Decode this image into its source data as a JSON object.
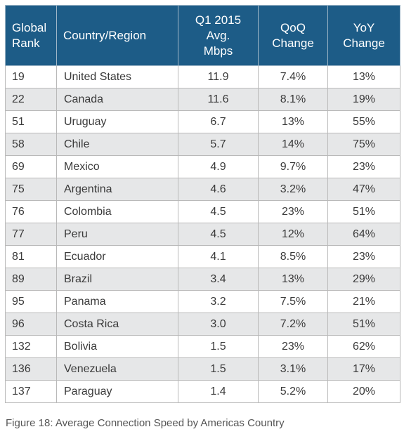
{
  "chart_data": {
    "type": "table",
    "columns": [
      "Global Rank",
      "Country/Region",
      "Q1 2015 Avg. Mbps",
      "QoQ Change",
      "YoY Change"
    ],
    "header_lines": [
      [
        "Global",
        "Rank"
      ],
      [
        "Country/Region"
      ],
      [
        "Q1 2015",
        "Avg.",
        "Mbps"
      ],
      [
        "QoQ",
        "Change"
      ],
      [
        "YoY",
        "Change"
      ]
    ],
    "rows": [
      {
        "rank": "19",
        "country": "United States",
        "speed": "11.9",
        "qoq": "7.4%",
        "yoy": "13%"
      },
      {
        "rank": "22",
        "country": "Canada",
        "speed": "11.6",
        "qoq": "8.1%",
        "yoy": "19%"
      },
      {
        "rank": "51",
        "country": "Uruguay",
        "speed": "6.7",
        "qoq": "13%",
        "yoy": "55%"
      },
      {
        "rank": "58",
        "country": "Chile",
        "speed": "5.7",
        "qoq": "14%",
        "yoy": "75%"
      },
      {
        "rank": "69",
        "country": "Mexico",
        "speed": "4.9",
        "qoq": "9.7%",
        "yoy": "23%"
      },
      {
        "rank": "75",
        "country": "Argentina",
        "speed": "4.6",
        "qoq": "3.2%",
        "yoy": "47%"
      },
      {
        "rank": "76",
        "country": "Colombia",
        "speed": "4.5",
        "qoq": "23%",
        "yoy": "51%"
      },
      {
        "rank": "77",
        "country": "Peru",
        "speed": "4.5",
        "qoq": "12%",
        "yoy": "64%"
      },
      {
        "rank": "81",
        "country": "Ecuador",
        "speed": "4.1",
        "qoq": "8.5%",
        "yoy": "23%"
      },
      {
        "rank": "89",
        "country": "Brazil",
        "speed": "3.4",
        "qoq": "13%",
        "yoy": "29%"
      },
      {
        "rank": "95",
        "country": "Panama",
        "speed": "3.2",
        "qoq": "7.5%",
        "yoy": "21%"
      },
      {
        "rank": "96",
        "country": "Costa Rica",
        "speed": "3.0",
        "qoq": "7.2%",
        "yoy": "51%"
      },
      {
        "rank": "132",
        "country": "Bolivia",
        "speed": "1.5",
        "qoq": "23%",
        "yoy": "62%"
      },
      {
        "rank": "136",
        "country": "Venezuela",
        "speed": "1.5",
        "qoq": "3.1%",
        "yoy": "17%"
      },
      {
        "rank": "137",
        "country": "Paraguay",
        "speed": "1.4",
        "qoq": "5.2%",
        "yoy": "20%"
      }
    ],
    "caption": "Figure 18: Average Connection Speed by Americas Country"
  },
  "colors": {
    "header_background": "#1d5c87",
    "header_text": "#ffffff",
    "stripe_row": "#e6e7e8",
    "body_text": "#3a3a3a"
  }
}
